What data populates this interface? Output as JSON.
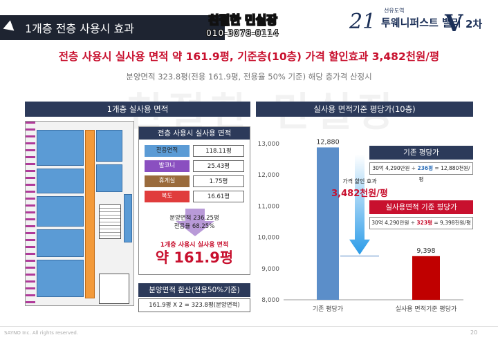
{
  "header": {
    "section_title": "1개층 전층 사용시 효과",
    "stamp_name": "친절한 민실장",
    "stamp_phone": "010-3078-0114",
    "logo_small": "선유도역",
    "logo_big": "21",
    "logo_name": "투웨니퍼스트 밸리",
    "logo_mark": "V",
    "logo_suffix": "2차"
  },
  "headline": "전층 사용시 실사용 면적 약 161.9평, 기준층(10층) 가격 할인효과 3,482천원/평",
  "subline": "분양면적 323.8평(전용 161.9평, 전용율 50% 기준) 해당 층가격 산정시",
  "left_panel": {
    "title": "1개층 실사용 면적",
    "table_title": "전층 사용시 실사용 면적",
    "rows": [
      {
        "label": "전용면적",
        "value": "118.11평",
        "color": "#5b9bd5",
        "text_color": "#222222"
      },
      {
        "label": "발코니",
        "value": "25.43평",
        "color": "#8a4fc0",
        "text_color": "#ffffff"
      },
      {
        "label": "휴게실",
        "value": "1.75평",
        "color": "#9a6b3c",
        "text_color": "#ffffff"
      },
      {
        "label": "복도",
        "value": "16.61평",
        "color": "#e03c3c",
        "text_color": "#ffffff"
      }
    ],
    "supply_line1": "분양면적 236.25평",
    "supply_line2": "전용율 68.25%",
    "result_small": "1개층 사용시 실사용 면적",
    "result_big": "약 161.9평",
    "conversion_title": "분양면적 환산(전용50%기준)",
    "conversion_value": "161.9평 X 2 = 323.8평(분양면적)"
  },
  "right_panel": {
    "title": "실사용 면적기준 평당가(10층)",
    "box1_title": "기존 평당가",
    "box1_text": "30억 4,290만원 ÷ 236평 = 12,880천원/평",
    "box1_text_parts": [
      "30억 4,290만원 ÷ ",
      "236평",
      " = 12,880천원/평"
    ],
    "box2_title": "실사용면적 기준 평당가",
    "box2_text_parts": [
      "30억 4,290만원 ÷ ",
      "323평",
      " = 9,398천원/평"
    ],
    "discount_label": "가격 할인 효과",
    "discount_value": "3,482천원/평"
  },
  "chart_data": {
    "type": "bar",
    "categories": [
      "기존 평당가",
      "실사용 면적기준 평당가"
    ],
    "values": [
      12880,
      9398
    ],
    "value_labels": [
      "12,880",
      "9,398"
    ],
    "colors": [
      "#5b8ec9",
      "#c00000"
    ],
    "ylim": [
      8000,
      13000
    ],
    "yticks": [
      8000,
      9000,
      10000,
      11000,
      12000,
      13000
    ],
    "ytick_labels": [
      "8,000",
      "9,000",
      "10,000",
      "11,000",
      "12,000",
      "13,000"
    ],
    "grid": false
  },
  "footer": {
    "copyright": "SAYNO Inc. All rights reserved.",
    "page": "20"
  }
}
